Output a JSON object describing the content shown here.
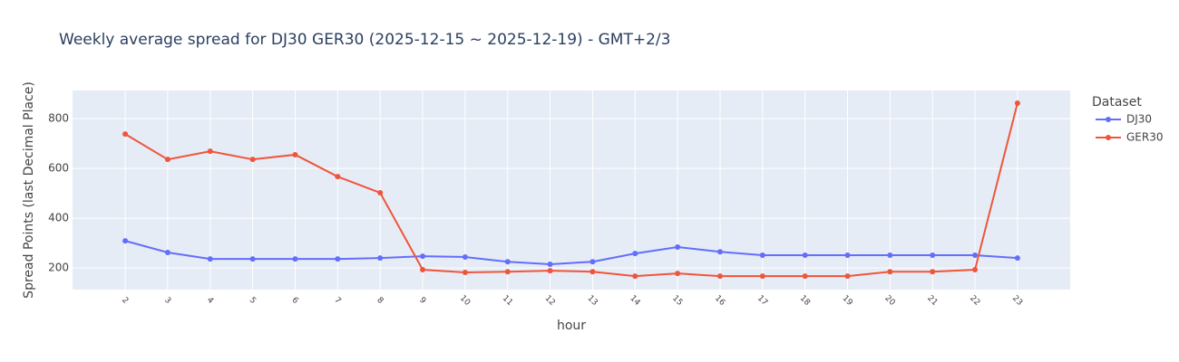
{
  "chart_data": {
    "type": "line",
    "title": "Weekly average spread for  DJ30 GER30 (2025-12-15 ~ 2025-12-19) - GMT+2/3",
    "x_label": "hour",
    "y_label": "Spread Points (last Decimal Place)",
    "legend_title": "Dataset",
    "x": [
      2,
      3,
      4,
      5,
      6,
      7,
      8,
      9,
      10,
      11,
      12,
      13,
      14,
      15,
      16,
      17,
      18,
      19,
      20,
      21,
      22,
      23
    ],
    "xlim": [
      0.76,
      24.24
    ],
    "xticks": [
      2,
      3,
      4,
      5,
      6,
      7,
      8,
      9,
      10,
      11,
      12,
      13,
      14,
      15,
      16,
      17,
      18,
      19,
      20,
      21,
      22,
      23
    ],
    "ylim": [
      113,
      913
    ],
    "yticks": [
      200,
      400,
      600,
      800
    ],
    "grid": true,
    "series": [
      {
        "name": "DJ30",
        "color": "#636efa",
        "values": [
          309,
          262,
          236,
          236,
          236,
          236,
          240,
          247,
          244,
          225,
          215,
          225,
          258,
          284,
          265,
          251,
          251,
          251,
          251,
          251,
          251,
          240
        ]
      },
      {
        "name": "GER30",
        "color": "#ef553b",
        "values": [
          738,
          636,
          669,
          636,
          655,
          567,
          502,
          193,
          182,
          185,
          189,
          185,
          167,
          178,
          167,
          167,
          167,
          167,
          185,
          185,
          193,
          862
        ]
      }
    ]
  }
}
